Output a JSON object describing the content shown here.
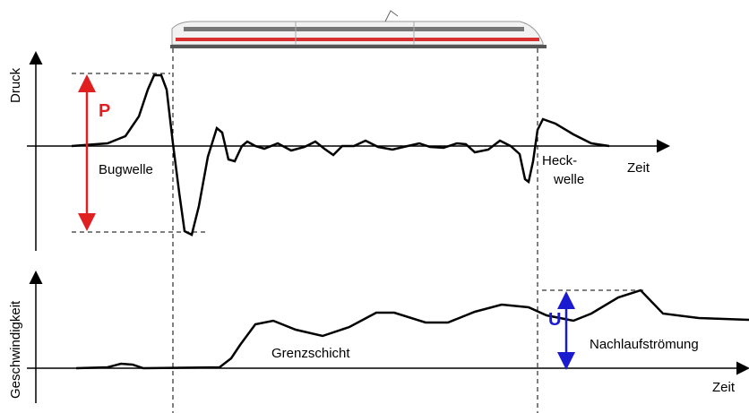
{
  "pressure_plot": {
    "axis_label": "Druck",
    "time_label": "Zeit",
    "amplitude_label": "P",
    "bow_wave_label": "Bugwelle",
    "tail_wave_label_line1": "Heck-",
    "tail_wave_label_line2": "welle"
  },
  "velocity_plot": {
    "axis_label": "Geschwindigkeit",
    "time_label": "Zeit",
    "amplitude_label": "U",
    "boundary_layer_label": "Grenzschicht",
    "wake_label": "Nachlaufströmung"
  }
}
